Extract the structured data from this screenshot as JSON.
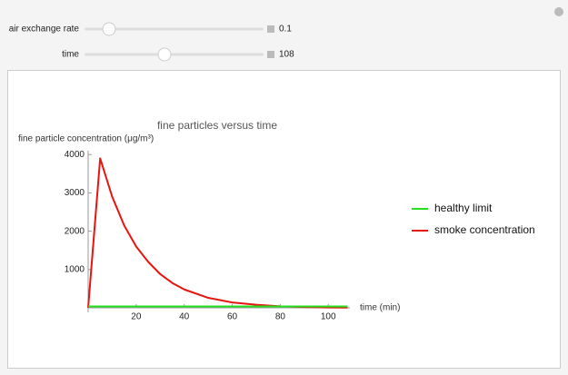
{
  "controls": [
    {
      "label": "air exchange rate",
      "value": 0.1
    },
    {
      "label": "time",
      "value": 108
    }
  ],
  "chart_data": {
    "type": "line",
    "title": "fine particles versus time",
    "y_label": "fine particle concentration (μg/m³)",
    "x_label": "time (min)",
    "x": [
      0,
      5,
      10,
      15,
      20,
      25,
      30,
      35,
      40,
      50,
      60,
      70,
      80,
      90,
      100,
      108
    ],
    "series": [
      {
        "name": "healthy limit",
        "color": "#22e01c",
        "values": [
          35,
          35,
          35,
          35,
          35,
          35,
          35,
          35,
          35,
          35,
          35,
          35,
          35,
          35,
          35,
          35
        ]
      },
      {
        "name": "smoke concentration",
        "color": "#e8140f",
        "values": [
          0,
          3900,
          2900,
          2150,
          1600,
          1200,
          880,
          650,
          480,
          260,
          140,
          80,
          40,
          20,
          10,
          6
        ]
      }
    ],
    "xlim": [
      0,
      109
    ],
    "ylim": [
      0,
      4100
    ],
    "xticks": [
      20,
      40,
      60,
      80,
      100
    ],
    "yticks": [
      1000,
      2000,
      3000,
      4000
    ],
    "legend": "right"
  }
}
